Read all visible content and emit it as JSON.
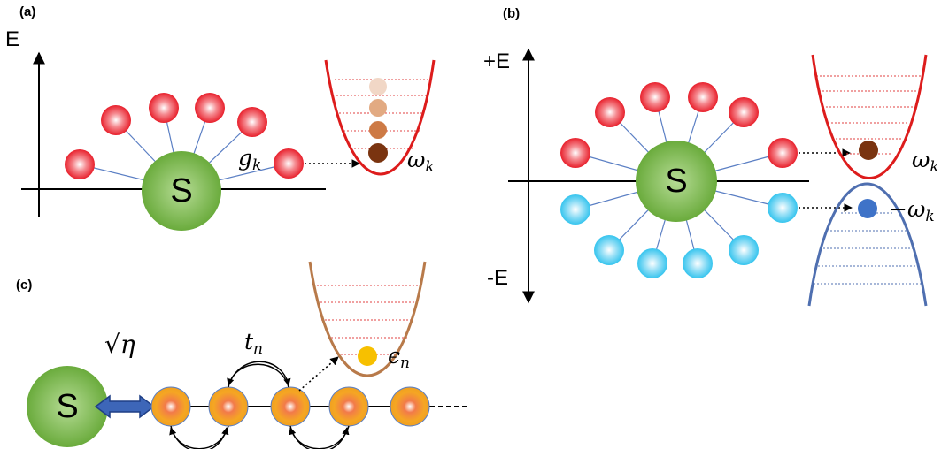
{
  "panels": {
    "a": "(a)",
    "b": "(b)",
    "c": "(c)"
  },
  "axes": {
    "a_y": "E",
    "b_top": "+E",
    "b_bottom": "-E"
  },
  "system_label": "S",
  "labels": {
    "coupling": "g",
    "coupling_sub": "k",
    "omega": "ω",
    "omega_sub": "k",
    "minus_omega": "−ω",
    "minus_omega_sub": "k",
    "hopping": "t",
    "hopping_sub": "n",
    "onsite": "ϵ",
    "onsite_sub": "n",
    "sqrt_eta": "√η"
  },
  "colors": {
    "system_green": "#7cbb4a",
    "positive_mode_red": "#e8202c",
    "negative_mode_blue": "#35c4ee",
    "well_red": "#dd1c1c",
    "well_blue": "#4f6fb0",
    "well_brown": "#b87a4a",
    "chain_orange": "#f0a020",
    "occupied_brown": "#7a3410",
    "occupied_blue": "#3f73c8",
    "occupied_yellow": "#f7c000",
    "arrow_blue": "#3d66b8"
  }
}
